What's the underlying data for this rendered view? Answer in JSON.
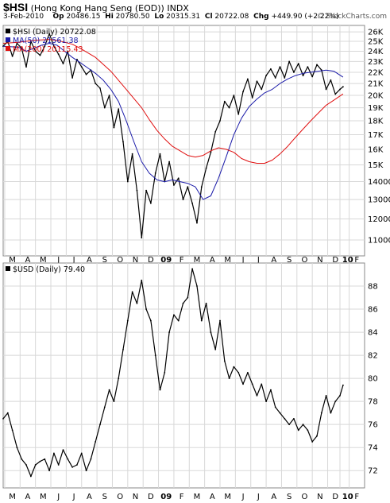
{
  "header": {
    "symbol": "$HSI",
    "name": "(Hong Kong Hang Seng (EOD))",
    "exchange": "INDX",
    "date": "3-Feb-2010",
    "op_label": "Op",
    "op": "20486.15",
    "hi_label": "Hi",
    "hi": "20780.50",
    "lo_label": "Lo",
    "lo": "20315.31",
    "cl_label": "Cl",
    "cl": "20722.08",
    "chg_label": "Chg",
    "chg": "+449.90 (+2.22%)",
    "brand": "© StockCharts.com"
  },
  "colors": {
    "price": "#000000",
    "ma50": "#1a1aa8",
    "ma200": "#e01010",
    "grid": "#d8d8d8",
    "frame": "#888888"
  },
  "chart_data": [
    {
      "type": "line",
      "panel": "top",
      "legend": [
        "$HSI (Daily) 20722.08",
        "MA(50) 21561.38",
        "MA(200) 20115.43"
      ],
      "yticks": [
        11000,
        12000,
        13000,
        14000,
        15000,
        16000,
        17000,
        18000,
        19000,
        20000,
        21000,
        22000,
        23000,
        24000,
        25000,
        26000
      ],
      "ytick_labels": [
        "11000",
        "12000",
        "13000",
        "14000",
        "15K",
        "16K",
        "17K",
        "18K",
        "19K",
        "20K",
        "21K",
        "22K",
        "23K",
        "24K",
        "25K",
        "26K"
      ],
      "ylim": [
        10300,
        26700
      ],
      "scale": "log",
      "grid": true,
      "legend_position": "top-left",
      "series": [
        {
          "name": "$HSI",
          "x": [
            0,
            0.3,
            0.6,
            0.9,
            1.2,
            1.5,
            1.8,
            2.1,
            2.4,
            2.7,
            3.0,
            3.3,
            3.6,
            3.9,
            4.2,
            4.5,
            4.8,
            5.1,
            5.4,
            5.7,
            6.0,
            6.3,
            6.6,
            6.9,
            7.2,
            7.5,
            7.8,
            8.1,
            8.4,
            8.7,
            9.0,
            9.3,
            9.6,
            9.9,
            10.2,
            10.5,
            10.8,
            11.1,
            11.4,
            11.7,
            12.0,
            12.3,
            12.6,
            12.9,
            13.2,
            13.5,
            13.8,
            14.1,
            14.4,
            14.7,
            15.0,
            15.3,
            15.6,
            15.9,
            16.2,
            16.5,
            16.8,
            17.1,
            17.4,
            17.7,
            18.0,
            18.3,
            18.6,
            18.9,
            19.2,
            19.5,
            19.8,
            20.1,
            20.4,
            20.7,
            21.0,
            21.3,
            21.6,
            21.9,
            22.1
          ],
          "y": [
            24500,
            25000,
            23500,
            24800,
            24300,
            22500,
            25000,
            24000,
            23600,
            24500,
            25800,
            24500,
            23700,
            22800,
            24000,
            21500,
            23200,
            22500,
            21800,
            22200,
            21000,
            20600,
            19000,
            20000,
            17500,
            18900,
            16500,
            14000,
            15700,
            13500,
            11100,
            13500,
            12800,
            14500,
            15700,
            14000,
            15200,
            13800,
            14200,
            13000,
            13700,
            12800,
            11800,
            13700,
            14800,
            15800,
            17200,
            18000,
            19500,
            19000,
            20000,
            18500,
            20300,
            21400,
            19800,
            21200,
            20500,
            21700,
            22300,
            21500,
            22500,
            21500,
            23000,
            22000,
            22800,
            21700,
            22500,
            21600,
            22700,
            22200,
            20500,
            21300,
            20100,
            20500,
            20722
          ]
        },
        {
          "name": "MA(50)",
          "x": [
            0,
            1,
            1.5,
            2,
            2.5,
            3,
            3.5,
            4,
            4.5,
            5,
            5.5,
            6,
            6.5,
            7,
            7.5,
            8,
            8.5,
            9,
            9.5,
            10,
            10.5,
            11,
            11.5,
            12,
            12.5,
            13,
            13.5,
            14,
            14.5,
            15,
            15.5,
            16,
            16.5,
            17,
            17.5,
            18,
            18.5,
            19,
            19.5,
            20,
            20.5,
            21,
            21.5,
            22.1
          ],
          "y": [
            24500,
            24400,
            24000,
            24300,
            24600,
            24800,
            24600,
            24000,
            23400,
            22900,
            22400,
            21900,
            21300,
            20500,
            19500,
            18000,
            16500,
            15200,
            14500,
            14100,
            14000,
            14100,
            14000,
            13900,
            13700,
            13000,
            13200,
            14200,
            15500,
            17000,
            18200,
            19100,
            19700,
            20200,
            20500,
            21000,
            21400,
            21700,
            21900,
            22000,
            22100,
            22200,
            22100,
            21561
          ]
        },
        {
          "name": "MA(200)",
          "x": [
            0,
            1,
            2,
            3,
            3.5,
            4,
            4.5,
            5,
            6,
            7,
            8,
            9,
            9.5,
            10,
            10.5,
            11,
            11.5,
            12,
            12.5,
            13,
            13.5,
            14,
            14.5,
            15,
            15.5,
            16,
            16.5,
            17,
            17.5,
            18,
            18.5,
            19,
            19.5,
            20,
            20.5,
            21,
            21.5,
            22.1
          ],
          "y": [
            24800,
            24900,
            25100,
            25200,
            25100,
            24900,
            24700,
            24300,
            23400,
            22100,
            20500,
            19000,
            18100,
            17300,
            16700,
            16200,
            15900,
            15600,
            15500,
            15600,
            15900,
            16100,
            16000,
            15800,
            15400,
            15200,
            15100,
            15100,
            15300,
            15700,
            16200,
            16800,
            17400,
            18000,
            18600,
            19200,
            19600,
            20115
          ]
        }
      ]
    },
    {
      "type": "line",
      "panel": "bottom",
      "legend": [
        "$USD (Daily) 79.40"
      ],
      "yticks": [
        72,
        74,
        76,
        78,
        80,
        82,
        84,
        86,
        88
      ],
      "ytick_labels": [
        "72",
        "74",
        "76",
        "78",
        "80",
        "82",
        "84",
        "86",
        "88"
      ],
      "ylim": [
        70.5,
        90
      ],
      "grid": true,
      "legend_position": "top-left",
      "series": [
        {
          "name": "$USD",
          "x": [
            0,
            0.3,
            0.6,
            0.9,
            1.2,
            1.5,
            1.8,
            2.1,
            2.4,
            2.7,
            3.0,
            3.3,
            3.6,
            3.9,
            4.2,
            4.5,
            4.8,
            5.1,
            5.4,
            5.7,
            6.0,
            6.3,
            6.6,
            6.9,
            7.2,
            7.5,
            7.8,
            8.1,
            8.4,
            8.7,
            9.0,
            9.3,
            9.6,
            9.9,
            10.2,
            10.5,
            10.8,
            11.1,
            11.4,
            11.7,
            12.0,
            12.3,
            12.6,
            12.9,
            13.2,
            13.5,
            13.8,
            14.1,
            14.4,
            14.7,
            15.0,
            15.3,
            15.6,
            15.9,
            16.2,
            16.5,
            16.8,
            17.1,
            17.4,
            17.7,
            18.0,
            18.3,
            18.6,
            18.9,
            19.2,
            19.5,
            19.8,
            20.1,
            20.4,
            20.7,
            21.0,
            21.3,
            21.6,
            21.9,
            22.1
          ],
          "y": [
            76.5,
            77.0,
            75.5,
            74.0,
            73.0,
            72.5,
            71.5,
            72.5,
            72.8,
            73.0,
            72.0,
            73.5,
            72.5,
            73.8,
            73.0,
            72.3,
            72.5,
            73.5,
            72.0,
            73.0,
            74.5,
            76.0,
            77.5,
            79.0,
            78.0,
            80.0,
            82.5,
            85.0,
            87.5,
            86.5,
            88.5,
            86.0,
            85.0,
            82.0,
            79.0,
            80.5,
            84.0,
            85.5,
            85.0,
            86.5,
            87.0,
            89.5,
            88.0,
            85.0,
            86.5,
            84.0,
            82.5,
            85.0,
            81.5,
            80.0,
            81.0,
            80.5,
            79.5,
            80.5,
            79.5,
            78.5,
            79.5,
            78.0,
            79.0,
            77.5,
            77.0,
            76.5,
            76.0,
            76.5,
            75.5,
            76.0,
            75.5,
            74.5,
            75.0,
            77.0,
            78.5,
            77.0,
            78.0,
            78.5,
            79.4
          ]
        }
      ]
    }
  ],
  "xaxis": {
    "labels": [
      "M",
      "A",
      "M",
      "J",
      "J",
      "A",
      "S",
      "O",
      "N",
      "D",
      "09",
      "F",
      "M",
      "A",
      "M",
      "J",
      "J",
      "A",
      "S",
      "O",
      "N",
      "D",
      "10",
      "F"
    ],
    "positions": [
      0.6,
      1.6,
      2.6,
      3.6,
      4.6,
      5.6,
      6.6,
      7.6,
      8.6,
      9.6,
      10.6,
      11.6,
      12.6,
      13.6,
      14.6,
      15.6,
      16.6,
      17.6,
      18.6,
      19.6,
      20.6,
      21.6,
      22.4,
      23.0
    ],
    "bold": [
      "09",
      "10"
    ],
    "xlim": [
      0,
      23.5
    ]
  }
}
